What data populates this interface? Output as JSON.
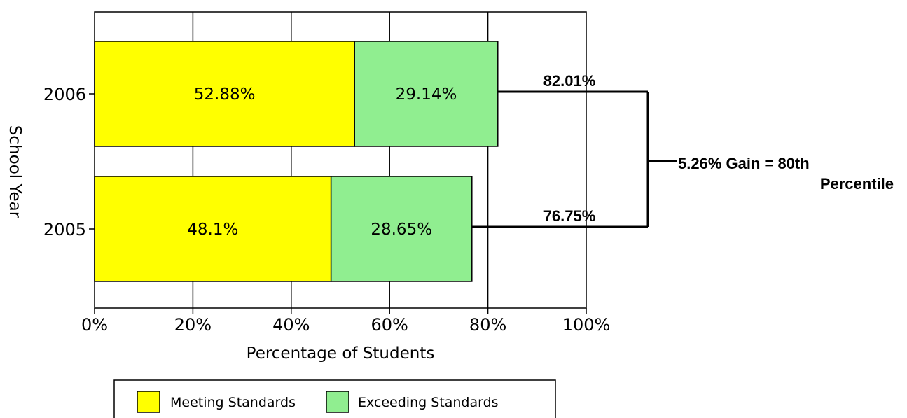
{
  "chart_data": {
    "type": "bar",
    "orientation": "horizontal",
    "stacked": true,
    "categories": [
      "2006",
      "2005"
    ],
    "series": [
      {
        "name": "Meeting Standards",
        "values": [
          52.88,
          48.1
        ],
        "labels": [
          "52.88%",
          "48.1%"
        ],
        "color": "#ffff00"
      },
      {
        "name": "Exceeding Standards",
        "values": [
          29.14,
          28.65
        ],
        "labels": [
          "29.14%",
          "28.65%"
        ],
        "color": "#90ee90"
      }
    ],
    "totals": [
      82.01,
      76.75
    ],
    "total_labels": [
      "82.01%",
      "76.75%"
    ],
    "xlabel": "Percentage of Students",
    "ylabel": "School Year",
    "xlim": [
      0,
      100
    ],
    "xticks": [
      "0%",
      "20%",
      "40%",
      "60%",
      "80%",
      "100%"
    ],
    "grid": true,
    "legend_position": "bottom",
    "annotation": {
      "line1": "5.26% Gain = 80th",
      "line2": "Percentile"
    }
  }
}
